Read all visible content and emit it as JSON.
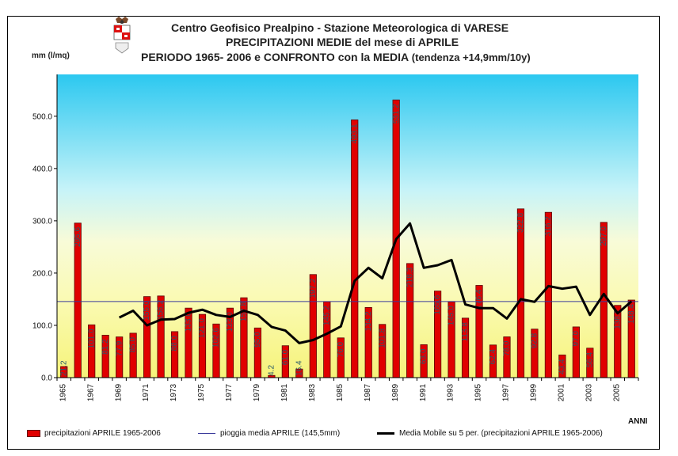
{
  "titles": {
    "line1": "Centro Geofisico Prealpino - Stazione Meteorologica di VARESE",
    "line2": "PRECIPITAZIONI MEDIE del mese di APRILE",
    "line3": "PERIODO 1965- 2006 e CONFRONTO con la MEDIA",
    "line3b": " (tendenza +14,9mm/10y)"
  },
  "y_unit": "mm (l/mq)",
  "x_unit": "ANNI",
  "legend": {
    "bars": "precipitazioni APRILE 1965-2006",
    "mean": "pioggia media APRILE (145,5mm)",
    "moving": "Media Mobile su 5 per. (precipitazioni APRILE 1965-2006)"
  },
  "colors": {
    "bar": "#e00000",
    "bar_edge": "#5a0000",
    "mean_line": "#3a3a9a",
    "moving_line": "#000000"
  },
  "chart_data": {
    "type": "bar",
    "x": [
      1965,
      1966,
      1967,
      1968,
      1969,
      1970,
      1971,
      1972,
      1973,
      1974,
      1975,
      1976,
      1977,
      1978,
      1979,
      1980,
      1981,
      1982,
      1983,
      1984,
      1985,
      1986,
      1987,
      1988,
      1989,
      1990,
      1991,
      1992,
      1993,
      1994,
      1995,
      1996,
      1997,
      1998,
      1999,
      2000,
      2001,
      2002,
      2003,
      2004,
      2005,
      2006
    ],
    "x_tick_labels": [
      "1965",
      "1967",
      "1969",
      "1971",
      "1973",
      "1975",
      "1977",
      "1979",
      "1981",
      "1983",
      "1985",
      "1987",
      "1989",
      "1991",
      "1993",
      "1995",
      "1997",
      "1999",
      "2001",
      "2003",
      "2005"
    ],
    "series": [
      {
        "name": "precipitazioni APRILE 1965-2006",
        "values": [
          21.2,
          295.6,
          101.0,
          81.2,
          77.9,
          85.0,
          155.0,
          156.2,
          88.0,
          133.0,
          121.0,
          102.6,
          133.0,
          152.8,
          95.0,
          4.2,
          61.0,
          16.4,
          197.2,
          145.2,
          76.0,
          493.1,
          134.2,
          101.8,
          531.2,
          218.3,
          63.0,
          165.6,
          145.0,
          113.8,
          176.4,
          62.4,
          78.0,
          322.8,
          92.8,
          316.2,
          43.4,
          97.0,
          56.4,
          297.0,
          138.2,
          148.4
        ],
        "labels": [
          "21.2",
          "295.6",
          "101.0",
          "81.2",
          "77.9",
          "85.0",
          "155.0",
          "156.2",
          "88.0",
          "133.0",
          "121.0",
          "102.6",
          "133.0",
          "152.8",
          "95.0",
          "4.2",
          "61.0",
          "16.4",
          "197.2",
          "145.2",
          "76.0",
          "493.1",
          "134.2",
          "101.8",
          "531.2",
          "218.3",
          "63.0",
          "165.6",
          "145.0",
          "113.8",
          "176.4",
          "62.4",
          "78.0",
          "322.8",
          "92.8",
          "316.2",
          "43.4",
          "97.0",
          "56.4",
          "297.0",
          "138.2",
          "148.4"
        ]
      },
      {
        "name": "pioggia media APRILE (145,5mm)",
        "type": "line",
        "values_constant": 145.5
      },
      {
        "name": "Media Mobile su 5 per. (precipitazioni APRILE 1965-2006)",
        "type": "line",
        "x": [
          1969,
          1970,
          1971,
          1972,
          1973,
          1974,
          1975,
          1976,
          1977,
          1978,
          1979,
          1980,
          1981,
          1982,
          1983,
          1984,
          1985,
          1986,
          1987,
          1988,
          1989,
          1990,
          1991,
          1992,
          1993,
          1994,
          1995,
          1996,
          1997,
          1998,
          1999,
          2000,
          2001,
          2002,
          2003,
          2004,
          2005,
          2006
        ],
        "values": [
          115,
          128,
          100,
          111,
          112,
          124,
          130,
          120,
          116,
          128,
          120,
          97,
          90,
          66,
          72,
          84,
          98,
          185,
          210,
          190,
          265,
          295,
          210,
          215,
          225,
          140,
          133,
          133,
          113,
          150,
          145,
          175,
          170,
          174,
          120,
          160,
          123,
          146
        ]
      }
    ],
    "y_ticks": [
      "0.0",
      "100.0",
      "200.0",
      "300.0",
      "400.0",
      "500.0"
    ],
    "ylim": [
      0,
      580
    ],
    "grid": false
  }
}
